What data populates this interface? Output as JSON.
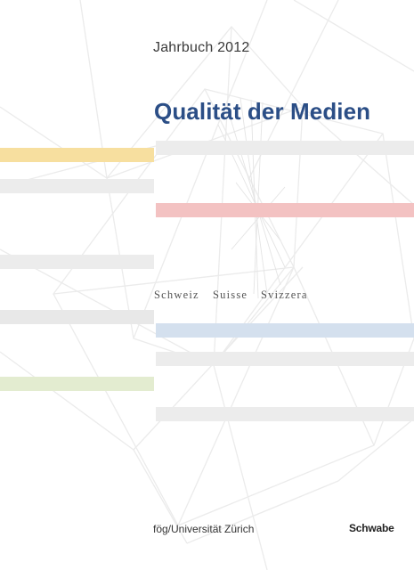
{
  "cover": {
    "year_label": "Jahrbuch 2012",
    "title": "Qualität der Medien",
    "languages": [
      "Schweiz",
      "Suisse",
      "Svizzera"
    ],
    "publisher": "fög/Universität Zürich",
    "imprint": "Schwabe"
  },
  "colors": {
    "title": "#2b4e86",
    "stripe_yellow": "#f7df9f",
    "stripe_red": "#f3c2c2",
    "stripe_blue": "#d4e0ee",
    "stripe_green": "#e3ecd0",
    "stripe_gray": "#ececec",
    "wireframe": "#ececec"
  }
}
